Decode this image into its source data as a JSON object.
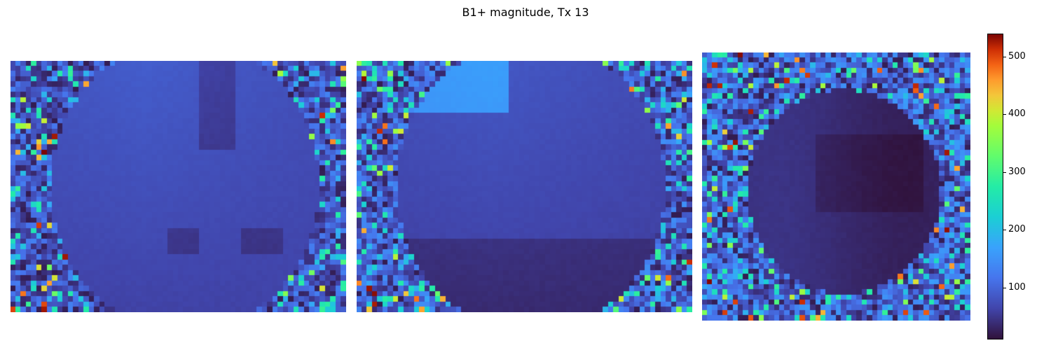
{
  "title": "B1+ magnitude, Tx 13",
  "colormap": "turbo",
  "chart_data": {
    "type": "heatmap",
    "title": "B1+ magnitude, Tx 13",
    "panels": [
      {
        "id": "slice-1",
        "view": "axial",
        "grid": [
          64,
          48
        ],
        "background_level": 70,
        "phantom_mean": 60,
        "axes_visible": false
      },
      {
        "id": "slice-2",
        "view": "coronal",
        "grid": [
          64,
          48
        ],
        "background_level": 80,
        "phantom_mean": 55,
        "axes_visible": false
      },
      {
        "id": "slice-3",
        "view": "sagittal",
        "grid": [
          52,
          52
        ],
        "background_level": 90,
        "phantom_mean": 35,
        "axes_visible": false
      }
    ],
    "colorbar": {
      "range": [
        10,
        540
      ],
      "ticks": [
        100,
        200,
        300,
        400,
        500
      ],
      "tick_labels": [
        "100",
        "200",
        "300",
        "400",
        "500"
      ],
      "position": "right"
    }
  }
}
